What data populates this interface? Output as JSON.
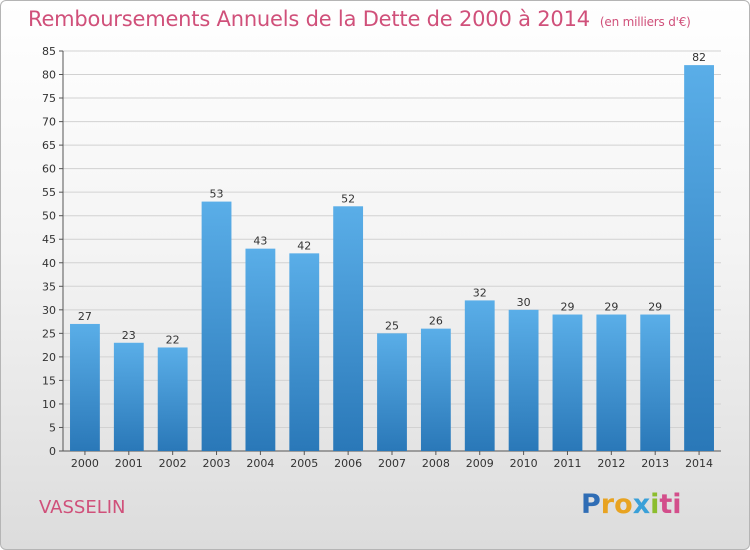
{
  "chart_data": {
    "type": "bar",
    "title": "Remboursements Annuels de la Dette de 2000 à 2014",
    "unit_note": "(en milliers d'€)",
    "categories": [
      "2000",
      "2001",
      "2002",
      "2003",
      "2004",
      "2005",
      "2006",
      "2007",
      "2008",
      "2009",
      "2010",
      "2011",
      "2012",
      "2013",
      "2014"
    ],
    "values": [
      27,
      23,
      22,
      53,
      43,
      42,
      52,
      25,
      26,
      32,
      30,
      29,
      29,
      29,
      82
    ],
    "ylim": [
      0,
      85
    ],
    "yticks": [
      0,
      5,
      10,
      15,
      20,
      25,
      30,
      35,
      40,
      45,
      50,
      55,
      60,
      65,
      70,
      75,
      80,
      85
    ],
    "xlabel": "",
    "ylabel": "",
    "grid": true,
    "legend": "none",
    "bar_color_top": "#5aaee8",
    "bar_color_bottom": "#2a78b8"
  },
  "footer": {
    "commune": "VASSELIN",
    "logo_letters": [
      "P",
      "r",
      "o",
      "x",
      "i",
      "ti"
    ]
  }
}
